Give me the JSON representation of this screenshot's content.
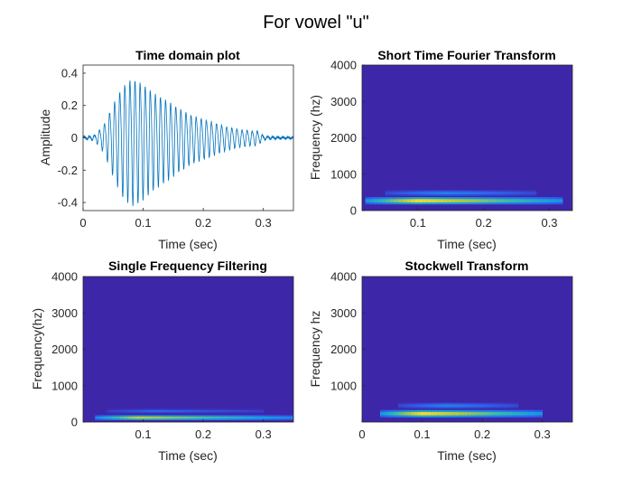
{
  "figure": {
    "title": "For vowel \"u\""
  },
  "colors": {
    "waveform": "#0072BD",
    "spectrogram_background": "#3e26a8",
    "axis": "#262626"
  },
  "chart_data": [
    {
      "id": "time-domain",
      "type": "line",
      "title": "Time domain plot",
      "xlabel": "Time (sec)",
      "ylabel": "Amplitude",
      "xlim": [
        0,
        0.35
      ],
      "ylim": [
        -0.45,
        0.45
      ],
      "xticks": [
        "0",
        "0.1",
        "0.2",
        "0.3"
      ],
      "xtick_values": [
        0,
        0.1,
        0.2,
        0.3
      ],
      "yticks": [
        "0.4",
        "0.2",
        "0",
        "-0.2",
        "-0.4"
      ],
      "ytick_values": [
        0.4,
        0.2,
        0,
        -0.2,
        -0.4
      ],
      "envelope": {
        "time": [
          0,
          0.01,
          0.02,
          0.035,
          0.05,
          0.065,
          0.08,
          0.09,
          0.1,
          0.12,
          0.14,
          0.16,
          0.18,
          0.2,
          0.22,
          0.24,
          0.26,
          0.28,
          0.29,
          0.3,
          0.31,
          0.33,
          0.35
        ],
        "amplitude": [
          0.01,
          0.01,
          0.02,
          0.1,
          0.25,
          0.38,
          0.44,
          0.43,
          0.4,
          0.33,
          0.28,
          0.22,
          0.17,
          0.14,
          0.11,
          0.08,
          0.06,
          0.05,
          0.05,
          0.015,
          0.008,
          0.006,
          0.005
        ]
      }
    },
    {
      "id": "stft",
      "type": "heatmap",
      "title": "Short Time Fourier Transform",
      "xlabel": "Time (sec)",
      "ylabel": "Frequency (hz)",
      "xlim": [
        0.015,
        0.335
      ],
      "ylim": [
        0,
        4000
      ],
      "xticks": [
        "0.1",
        "0.2",
        "0.3"
      ],
      "xtick_values": [
        0.1,
        0.2,
        0.3
      ],
      "yticks": [
        "4000",
        "3000",
        "2000",
        "1000",
        "0"
      ],
      "ytick_values": [
        4000,
        3000,
        2000,
        1000,
        0
      ],
      "energy_bands": [
        {
          "t_start": 0.02,
          "t_end": 0.32,
          "freq": 270,
          "bandwidth": 100,
          "peak_time": 0.1,
          "peak_intensity": 1.0
        },
        {
          "t_start": 0.05,
          "t_end": 0.28,
          "freq": 480,
          "bandwidth": 80,
          "peak_time": 0.14,
          "peak_intensity": 0.3
        }
      ]
    },
    {
      "id": "sff",
      "type": "heatmap",
      "title": "Single Frequency Filtering",
      "xlabel": "Time (sec)",
      "ylabel": "Frequency(hz)",
      "xlim": [
        0,
        0.35
      ],
      "ylim": [
        0,
        4000
      ],
      "xticks": [
        "0.1",
        "0.2",
        "0.3"
      ],
      "xtick_values": [
        0.1,
        0.2,
        0.3
      ],
      "yticks": [
        "4000",
        "3000",
        "2000",
        "1000",
        "0"
      ],
      "ytick_values": [
        4000,
        3000,
        2000,
        1000,
        0
      ],
      "energy_bands": [
        {
          "t_start": 0.02,
          "t_end": 0.35,
          "freq": 120,
          "bandwidth": 70,
          "peak_time": 0.09,
          "peak_intensity": 0.85
        },
        {
          "t_start": 0.04,
          "t_end": 0.3,
          "freq": 300,
          "bandwidth": 60,
          "peak_time": 0.12,
          "peak_intensity": 0.2
        }
      ]
    },
    {
      "id": "stockwell",
      "type": "heatmap",
      "title": "Stockwell Transform",
      "xlabel": "Time (sec)",
      "ylabel": "Frequency hz",
      "xlim": [
        0,
        0.35
      ],
      "ylim": [
        0,
        4000
      ],
      "xticks": [
        "0",
        "0.1",
        "0.2",
        "0.3"
      ],
      "xtick_values": [
        0,
        0.1,
        0.2,
        0.3
      ],
      "yticks": [
        "4000",
        "3000",
        "2000",
        "1000"
      ],
      "ytick_values": [
        4000,
        3000,
        2000,
        1000
      ],
      "energy_bands": [
        {
          "t_start": 0.03,
          "t_end": 0.3,
          "freq": 230,
          "bandwidth": 100,
          "peak_time": 0.1,
          "peak_intensity": 1.0
        },
        {
          "t_start": 0.06,
          "t_end": 0.26,
          "freq": 450,
          "bandwidth": 80,
          "peak_time": 0.14,
          "peak_intensity": 0.3
        }
      ]
    }
  ]
}
